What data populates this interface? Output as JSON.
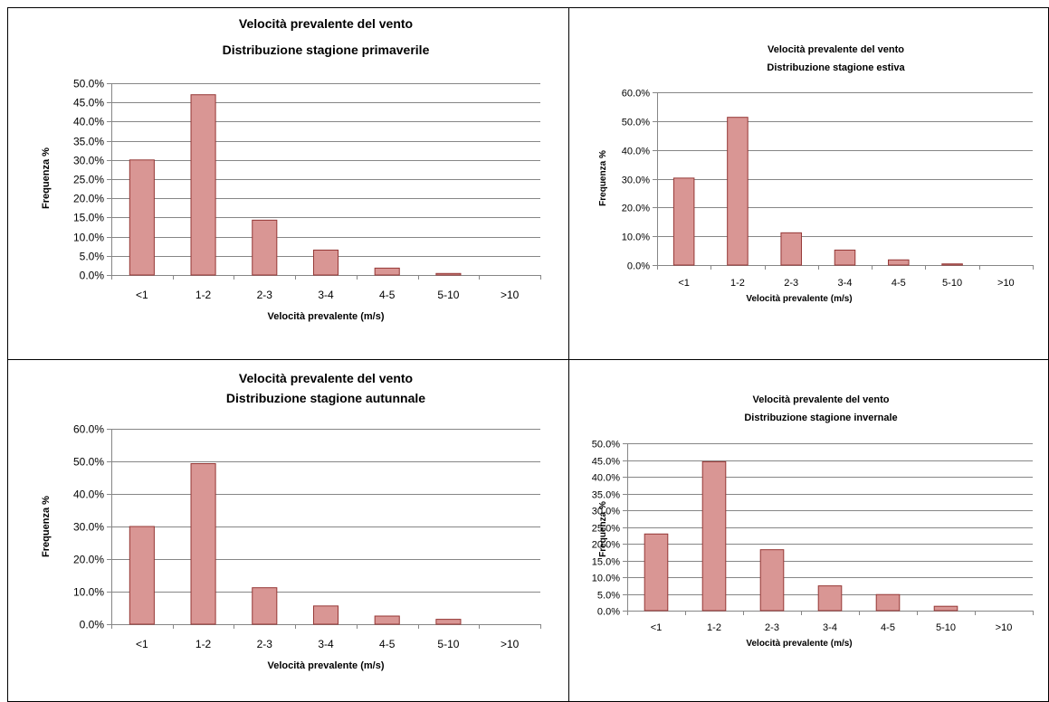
{
  "colors": {
    "bar_fill": "#d99694",
    "bar_stroke": "#953735",
    "grid": "#868686",
    "border": "#000000"
  },
  "chart_data": [
    {
      "type": "bar",
      "title": [
        "Velocità prevalente del vento",
        "Distribuzione stagione primaverile"
      ],
      "xlabel": "Velocità prevalente (m/s)",
      "ylabel": "Frequenza %",
      "categories": [
        "<1",
        "1-2",
        "2-3",
        "3-4",
        "4-5",
        "5-10",
        ">10"
      ],
      "values": [
        30.0,
        47.0,
        14.3,
        6.5,
        1.8,
        0.4,
        0.0
      ],
      "ylim": [
        0,
        50
      ],
      "yticks": [
        "0.0%",
        "5.0%",
        "10.0%",
        "15.0%",
        "20.0%",
        "25.0%",
        "30.0%",
        "35.0%",
        "40.0%",
        "45.0%",
        "50.0%"
      ],
      "grid": true
    },
    {
      "type": "bar",
      "title": [
        "Velocità prevalente del vento",
        "Distribuzione stagione estiva"
      ],
      "xlabel": "Velocità prevalente (m/s)",
      "ylabel": "Frequenza %",
      "categories": [
        "<1",
        "1-2",
        "2-3",
        "3-4",
        "4-5",
        "5-10",
        ">10"
      ],
      "values": [
        30.2,
        51.3,
        11.2,
        5.2,
        1.8,
        0.4,
        0.0
      ],
      "ylim": [
        0,
        60
      ],
      "yticks": [
        "0.0%",
        "10.0%",
        "20.0%",
        "30.0%",
        "40.0%",
        "50.0%",
        "60.0%"
      ],
      "grid": true
    },
    {
      "type": "bar",
      "title": [
        "Velocità prevalente del vento",
        "Distribuzione stagione autunnale"
      ],
      "xlabel": "Velocità prevalente (m/s)",
      "ylabel": "Frequenza %",
      "categories": [
        "<1",
        "1-2",
        "2-3",
        "3-4",
        "4-5",
        "5-10",
        ">10"
      ],
      "values": [
        30.0,
        49.3,
        11.2,
        5.6,
        2.5,
        1.5,
        0.0
      ],
      "ylim": [
        0,
        60
      ],
      "yticks": [
        "0.0%",
        "10.0%",
        "20.0%",
        "30.0%",
        "40.0%",
        "50.0%",
        "60.0%"
      ],
      "grid": true
    },
    {
      "type": "bar",
      "title": [
        "Velocità prevalente del vento",
        "Distribuzione stagione invernale"
      ],
      "xlabel": "Velocità prevalente (m/s)",
      "ylabel": "Frequenza %",
      "categories": [
        "<1",
        "1-2",
        "2-3",
        "3-4",
        "4-5",
        "5-10",
        ">10"
      ],
      "values": [
        22.9,
        44.5,
        18.2,
        7.4,
        4.8,
        1.3,
        0.0
      ],
      "ylim": [
        0,
        50
      ],
      "yticks": [
        "0.0%",
        "5.0%",
        "10.0%",
        "15.0%",
        "20.0%",
        "25.0%",
        "30.0%",
        "35.0%",
        "40.0%",
        "45.0%",
        "50.0%"
      ],
      "grid": true
    }
  ]
}
